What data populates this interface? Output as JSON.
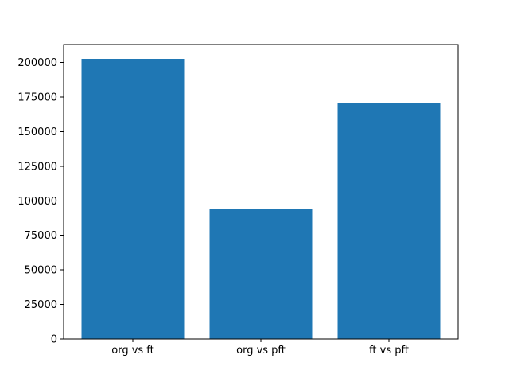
{
  "figure": {
    "background": "#ffffff"
  },
  "chart_data": {
    "type": "bar",
    "title": "",
    "xlabel": "",
    "ylabel": "",
    "categories": [
      "org vs ft",
      "org vs pft",
      "ft vs pft"
    ],
    "values": [
      202700,
      93800,
      171000
    ],
    "yticks": [
      0,
      25000,
      50000,
      75000,
      100000,
      125000,
      150000,
      175000,
      200000
    ],
    "ytick_labels": [
      "0",
      "25000",
      "50000",
      "75000",
      "100000",
      "125000",
      "150000",
      "175000",
      "200000"
    ],
    "ylim": [
      0,
      213000
    ],
    "xlim": [
      -0.54,
      2.54
    ],
    "bar_width_fraction": 0.8,
    "bar_color": "#1f77b4",
    "axis_color": "#000000",
    "tick_label_color": "#000000",
    "grid": false,
    "legend": "none",
    "background_color": "#ffffff"
  }
}
